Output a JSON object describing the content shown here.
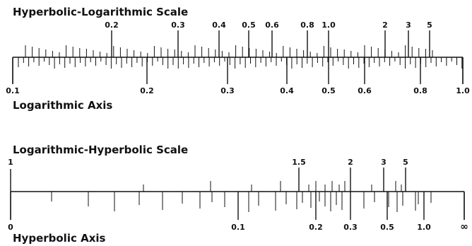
{
  "scale1": {
    "title": "Hyperbolic-Logarithmic Scale",
    "axis_label": "Logarithmic Axis",
    "top_labels": [
      "0.2",
      "0.3",
      "0.4",
      "0.5",
      "0.6",
      "0.8",
      "1.0",
      "2",
      "3",
      "5"
    ],
    "bottom_labels": [
      "0.1",
      "0.2",
      "0.3",
      "0.4",
      "0.5",
      "0.6",
      "0.8",
      "1.0"
    ]
  },
  "scale2": {
    "title": "Logarithmic-Hyperbolic Scale",
    "axis_label": "Hyperbolic Axis",
    "top_labels": [
      "1",
      "1.5",
      "2",
      "3",
      "5"
    ],
    "bottom_labels": [
      "0",
      "0.1",
      "0.2",
      "0.3",
      "0.5",
      "1.0",
      "∞"
    ]
  }
}
